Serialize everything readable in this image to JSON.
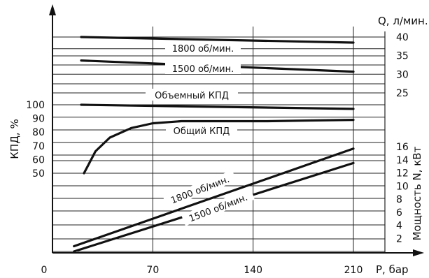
{
  "chart_data": {
    "type": "line",
    "x_axis": {
      "label": "P, бар",
      "ticks": [
        "0",
        "70",
        "140",
        "210"
      ],
      "range": [
        0,
        210
      ]
    },
    "left_axis": {
      "label": "КПД, %",
      "ticks": [
        "100",
        "90",
        "80",
        "70",
        "60",
        "50"
      ],
      "range": [
        50,
        100
      ]
    },
    "right_top_axis": {
      "label": "Q, л/мин.",
      "ticks": [
        "40",
        "35",
        "30",
        "25"
      ],
      "range": [
        25,
        40
      ]
    },
    "right_bottom_axis": {
      "label": "Мощность N, кВт",
      "ticks": [
        "16",
        "14",
        "12",
        "10",
        "8",
        "6",
        "4",
        "2"
      ],
      "range": [
        0,
        16
      ]
    },
    "grid": true,
    "series": [
      {
        "name": "1800 об/мин.",
        "axis": "Q",
        "x": [
          20,
          210
        ],
        "y": [
          40,
          38.5
        ]
      },
      {
        "name": "1500 об/мин.",
        "axis": "Q",
        "x": [
          20,
          210
        ],
        "y": [
          33.7,
          30.7
        ]
      },
      {
        "name": "Объемный КПД",
        "axis": "eff",
        "x": [
          20,
          210
        ],
        "y": [
          100,
          97
        ]
      },
      {
        "name": "Общий КПД",
        "axis": "eff",
        "x": [
          22,
          25,
          30,
          40,
          55,
          70,
          90,
          120,
          150,
          180,
          210
        ],
        "y": [
          50,
          56,
          66,
          76,
          83,
          86.5,
          88,
          88,
          88,
          88.5,
          89
        ]
      },
      {
        "name": "1800 об/мин.",
        "axis": "N",
        "x": [
          15,
          210
        ],
        "y": [
          0.8,
          15.7
        ]
      },
      {
        "name": "1500 об/мин.",
        "axis": "N",
        "x": [
          15,
          210
        ],
        "y": [
          0.0,
          13.5
        ]
      }
    ]
  }
}
